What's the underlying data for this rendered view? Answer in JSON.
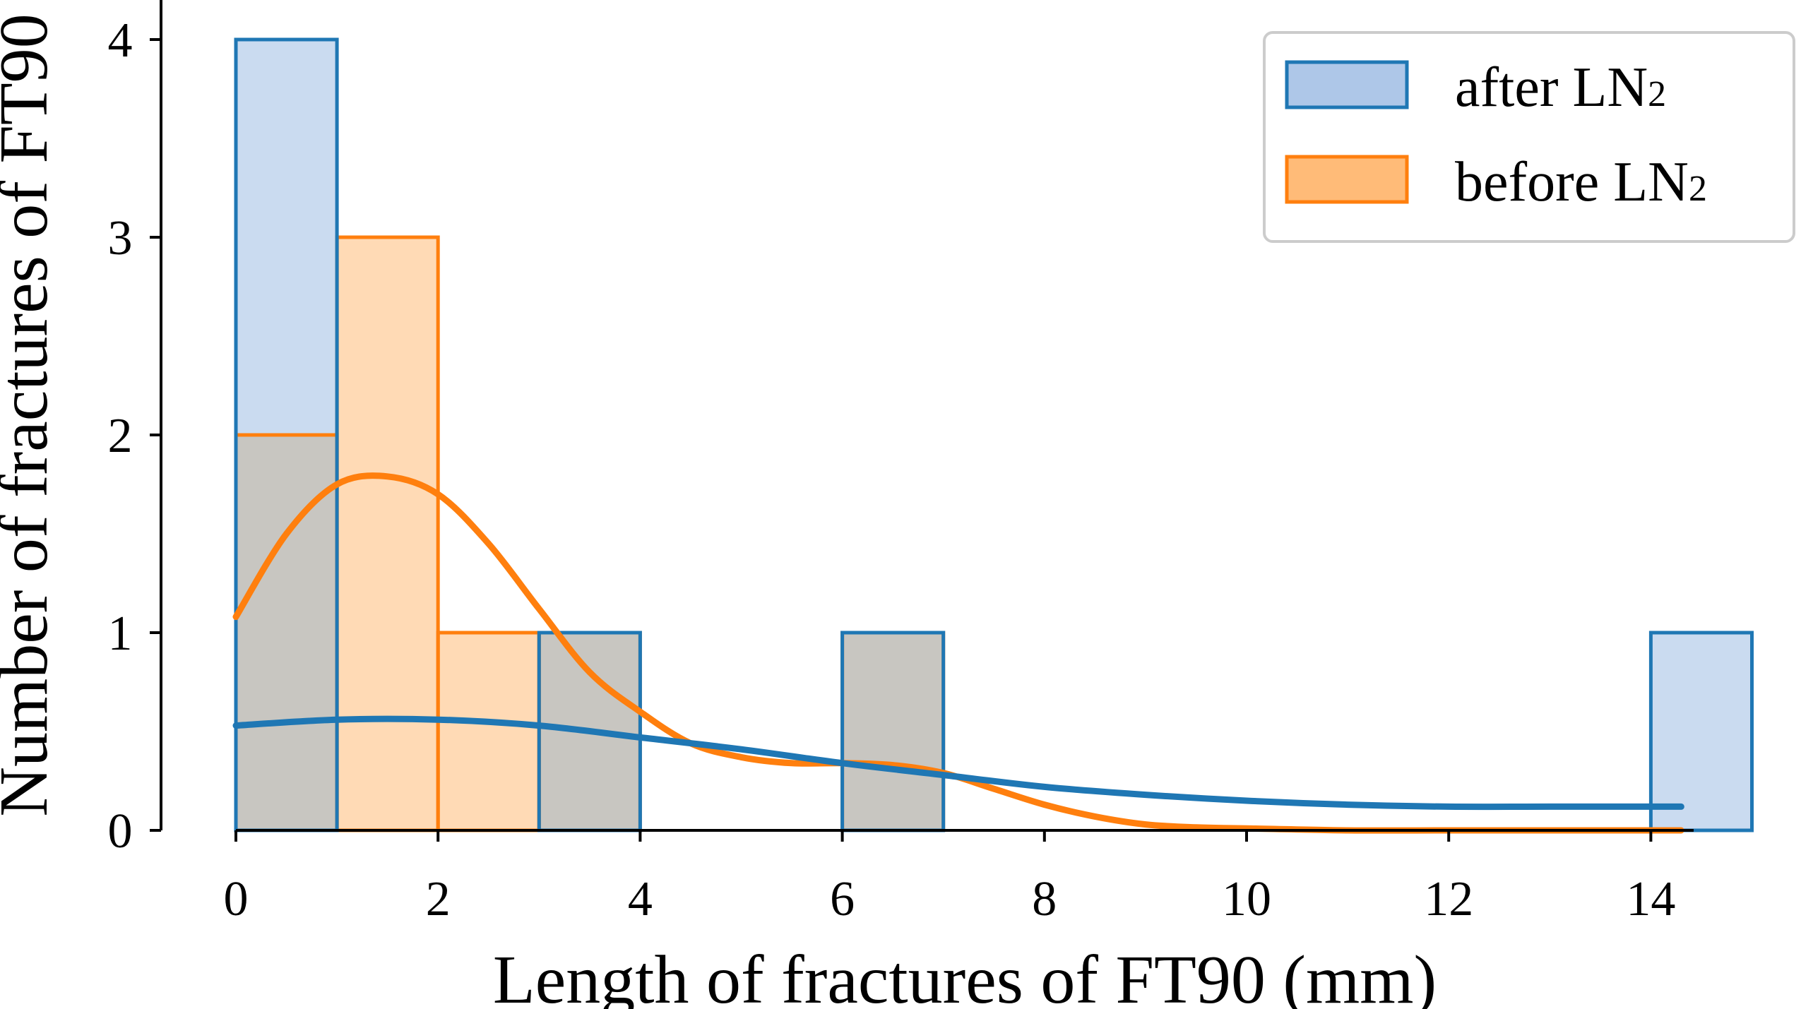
{
  "chart_data": {
    "type": "bar",
    "xlabel": "Length of fractures of FT90 (mm)",
    "ylabel": "Number of fractures of FT90",
    "xlim": [
      0,
      15
    ],
    "ylim": [
      0,
      4
    ],
    "x_ticks": [
      "0",
      "2",
      "4",
      "6",
      "8",
      "10",
      "12",
      "14"
    ],
    "y_ticks": [
      "0",
      "1",
      "2",
      "3",
      "4"
    ],
    "bin_width": 1,
    "legend_position": "top-right",
    "series": [
      {
        "name": "after LN₂",
        "legend_label": "after LN",
        "legend_sub": "2",
        "color": "#1f77b4",
        "fill": "#aec7e8",
        "bins": [
          {
            "x0": 0,
            "x1": 1,
            "count": 4
          },
          {
            "x0": 3,
            "x1": 4,
            "count": 1
          },
          {
            "x0": 6,
            "x1": 7,
            "count": 1
          },
          {
            "x0": 14,
            "x1": 15,
            "count": 1
          }
        ],
        "kde": {
          "x": [
            0,
            1,
            2,
            3,
            4,
            5,
            6,
            7,
            8,
            9,
            10,
            11,
            12,
            13,
            14.3
          ],
          "y": [
            0.53,
            0.56,
            0.56,
            0.53,
            0.47,
            0.41,
            0.34,
            0.28,
            0.22,
            0.18,
            0.15,
            0.13,
            0.12,
            0.12,
            0.12
          ]
        }
      },
      {
        "name": "before LN₂",
        "legend_label": "before LN",
        "legend_sub": "2",
        "color": "#ff7f0e",
        "fill": "#ffbb78",
        "bins": [
          {
            "x0": 0,
            "x1": 1,
            "count": 2
          },
          {
            "x0": 1,
            "x1": 2,
            "count": 3
          },
          {
            "x0": 2,
            "x1": 3,
            "count": 1
          },
          {
            "x0": 3,
            "x1": 4,
            "count": 1
          },
          {
            "x0": 6,
            "x1": 7,
            "count": 1
          }
        ],
        "kde": {
          "x": [
            0,
            0.5,
            1,
            1.5,
            2,
            2.5,
            3,
            3.5,
            4,
            4.5,
            5,
            5.5,
            6,
            6.5,
            7,
            7.5,
            8,
            8.5,
            9,
            9.5,
            10,
            11,
            12,
            13,
            14.3
          ],
          "y": [
            1.08,
            1.5,
            1.75,
            1.79,
            1.7,
            1.45,
            1.12,
            0.8,
            0.6,
            0.44,
            0.37,
            0.34,
            0.34,
            0.33,
            0.29,
            0.21,
            0.13,
            0.07,
            0.03,
            0.015,
            0.01,
            0.0,
            0.0,
            0.0,
            0.0
          ]
        }
      }
    ],
    "overlap_color": "#c8c6c1"
  }
}
